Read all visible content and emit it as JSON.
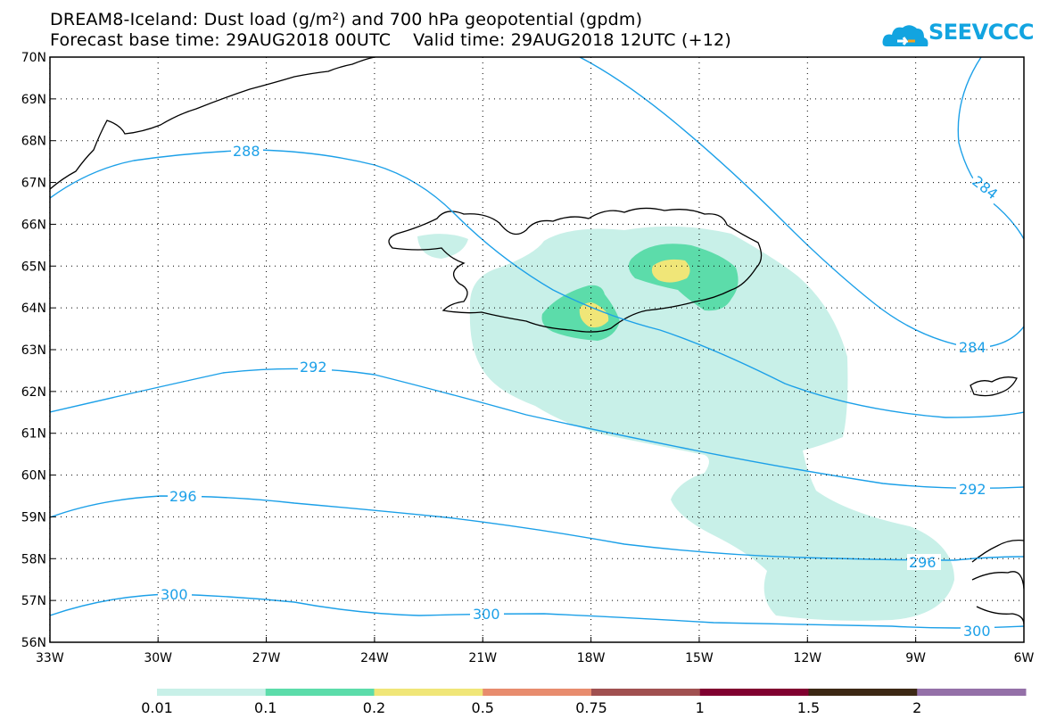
{
  "title_line1": "DREAM8-Iceland: Dust load (g/m²) and 700 hPa geopotential (gpdm)",
  "title_line2": "Forecast base time: 29AUG2018 00UTC    Valid time: 29AUG2018 12UTC (+12)",
  "logo_text": "SEEVCCC",
  "lat_labels": [
    "70N",
    "69N",
    "68N",
    "67N",
    "66N",
    "65N",
    "64N",
    "63N",
    "62N",
    "61N",
    "60N",
    "59N",
    "58N",
    "57N",
    "56N"
  ],
  "lon_labels": [
    "33W",
    "30W",
    "27W",
    "24W",
    "21W",
    "18W",
    "15W",
    "12W",
    "9W",
    "6W"
  ],
  "contour_labels": {
    "c288": "288",
    "c284a": "284",
    "c284b": "284",
    "c292a": "292",
    "c292b": "292",
    "c296a": "296",
    "c296b": "296",
    "c300a": "300",
    "c300b": "300",
    "c300c": "300"
  },
  "colorbar": {
    "labels": [
      "0.01",
      "0.1",
      "0.2",
      "0.5",
      "0.75",
      "1",
      "1.5",
      "2"
    ],
    "colors": [
      "#c8f0e8",
      "#5cdcaa",
      "#f0e678",
      "#e88c6e",
      "#a05050",
      "#800030",
      "#3c2814",
      "#9470a8"
    ]
  },
  "colors": {
    "contour": "#1ca0e8",
    "coast": "#000000",
    "dust_low": "#c8f0e8",
    "dust_mid": "#5cdcaa",
    "dust_high": "#f0e678"
  }
}
